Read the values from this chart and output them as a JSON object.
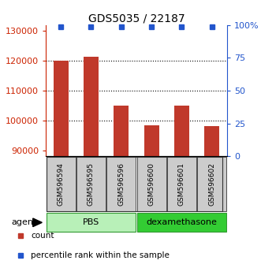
{
  "title": "GDS5035 / 22187",
  "samples": [
    "GSM596594",
    "GSM596595",
    "GSM596596",
    "GSM596600",
    "GSM596601",
    "GSM596602"
  ],
  "counts": [
    120000,
    121500,
    105000,
    98500,
    105000,
    98000
  ],
  "percentiles": [
    99,
    99,
    99,
    99,
    99,
    99
  ],
  "ylim_left": [
    88000,
    132000
  ],
  "yticks_left": [
    90000,
    100000,
    110000,
    120000,
    130000
  ],
  "ylim_right": [
    0,
    100
  ],
  "yticks_right": [
    0,
    25,
    50,
    75,
    100
  ],
  "ytick_labels_right": [
    "0",
    "25",
    "50",
    "75",
    "100%"
  ],
  "bar_color": "#c0392b",
  "dot_color": "#2255cc",
  "grid_ticks": [
    100000,
    110000,
    120000
  ],
  "groups": [
    {
      "label": "PBS",
      "indices": [
        0,
        1,
        2
      ],
      "color": "#b8f0b8",
      "border": "#339933"
    },
    {
      "label": "dexamethasone",
      "indices": [
        3,
        4,
        5
      ],
      "color": "#33cc33",
      "border": "#339933"
    }
  ],
  "sample_box_color": "#cccccc",
  "sample_box_edge": "#333333",
  "legend_items": [
    {
      "label": "count",
      "color": "#c0392b"
    },
    {
      "label": "percentile rank within the sample",
      "color": "#2255cc"
    }
  ],
  "agent_label": "agent",
  "background_color": "#ffffff",
  "left_axis_color": "#cc2200",
  "right_axis_color": "#2255cc",
  "title_fontsize": 10
}
